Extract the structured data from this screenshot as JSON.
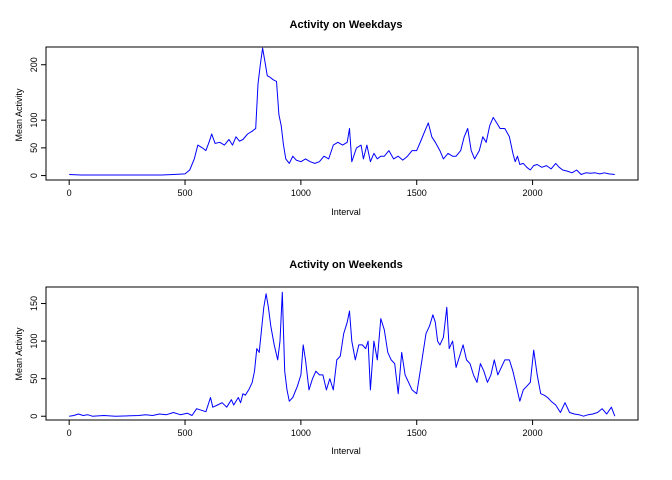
{
  "chart_data": [
    {
      "type": "line",
      "title": "Activity on Weekdays",
      "xlabel": "Interval",
      "ylabel": "Mean Activity",
      "xlim": [
        -100,
        2455
      ],
      "ylim": [
        -8,
        232
      ],
      "xticks": [
        0,
        500,
        1000,
        1500,
        2000
      ],
      "yticks": [
        0,
        50,
        100,
        200
      ],
      "x_tick_labels": [
        "0",
        "500",
        "1000",
        "1500",
        "2000"
      ],
      "y_tick_labels": [
        "0",
        "50",
        "100",
        "200"
      ],
      "grid": false,
      "series": [
        {
          "color": "#0000ff",
          "points": [
            [
              0,
              2
            ],
            [
              50,
              1
            ],
            [
              100,
              1
            ],
            [
              200,
              1
            ],
            [
              300,
              1
            ],
            [
              400,
              1
            ],
            [
              450,
              2
            ],
            [
              500,
              3
            ],
            [
              520,
              10
            ],
            [
              540,
              30
            ],
            [
              555,
              55
            ],
            [
              575,
              50
            ],
            [
              590,
              45
            ],
            [
              605,
              62
            ],
            [
              615,
              75
            ],
            [
              630,
              58
            ],
            [
              650,
              60
            ],
            [
              670,
              55
            ],
            [
              690,
              65
            ],
            [
              705,
              55
            ],
            [
              720,
              70
            ],
            [
              735,
              62
            ],
            [
              750,
              65
            ],
            [
              770,
              75
            ],
            [
              790,
              80
            ],
            [
              805,
              85
            ],
            [
              815,
              165
            ],
            [
              825,
              200
            ],
            [
              835,
              230
            ],
            [
              845,
              205
            ],
            [
              855,
              180
            ],
            [
              865,
              178
            ],
            [
              880,
              173
            ],
            [
              895,
              170
            ],
            [
              905,
              110
            ],
            [
              915,
              90
            ],
            [
              925,
              55
            ],
            [
              935,
              30
            ],
            [
              950,
              22
            ],
            [
              965,
              35
            ],
            [
              980,
              28
            ],
            [
              1000,
              25
            ],
            [
              1020,
              30
            ],
            [
              1040,
              25
            ],
            [
              1060,
              22
            ],
            [
              1080,
              25
            ],
            [
              1100,
              35
            ],
            [
              1120,
              30
            ],
            [
              1140,
              55
            ],
            [
              1160,
              60
            ],
            [
              1180,
              55
            ],
            [
              1200,
              60
            ],
            [
              1210,
              85
            ],
            [
              1220,
              25
            ],
            [
              1240,
              50
            ],
            [
              1260,
              55
            ],
            [
              1270,
              30
            ],
            [
              1285,
              55
            ],
            [
              1300,
              25
            ],
            [
              1315,
              40
            ],
            [
              1330,
              30
            ],
            [
              1345,
              35
            ],
            [
              1360,
              35
            ],
            [
              1380,
              45
            ],
            [
              1400,
              30
            ],
            [
              1420,
              35
            ],
            [
              1440,
              28
            ],
            [
              1460,
              35
            ],
            [
              1480,
              45
            ],
            [
              1500,
              45
            ],
            [
              1520,
              65
            ],
            [
              1535,
              80
            ],
            [
              1550,
              95
            ],
            [
              1565,
              70
            ],
            [
              1580,
              60
            ],
            [
              1600,
              45
            ],
            [
              1615,
              30
            ],
            [
              1635,
              40
            ],
            [
              1655,
              35
            ],
            [
              1670,
              35
            ],
            [
              1690,
              45
            ],
            [
              1705,
              70
            ],
            [
              1720,
              85
            ],
            [
              1735,
              45
            ],
            [
              1750,
              30
            ],
            [
              1770,
              45
            ],
            [
              1785,
              70
            ],
            [
              1800,
              60
            ],
            [
              1815,
              90
            ],
            [
              1830,
              105
            ],
            [
              1845,
              95
            ],
            [
              1860,
              85
            ],
            [
              1880,
              85
            ],
            [
              1900,
              70
            ],
            [
              1915,
              40
            ],
            [
              1925,
              25
            ],
            [
              1935,
              35
            ],
            [
              1945,
              20
            ],
            [
              1960,
              22
            ],
            [
              1975,
              15
            ],
            [
              1990,
              10
            ],
            [
              2005,
              18
            ],
            [
              2020,
              20
            ],
            [
              2040,
              15
            ],
            [
              2060,
              18
            ],
            [
              2080,
              12
            ],
            [
              2100,
              22
            ],
            [
              2115,
              15
            ],
            [
              2130,
              10
            ],
            [
              2150,
              8
            ],
            [
              2170,
              5
            ],
            [
              2190,
              10
            ],
            [
              2210,
              2
            ],
            [
              2230,
              5
            ],
            [
              2250,
              4
            ],
            [
              2270,
              5
            ],
            [
              2290,
              3
            ],
            [
              2310,
              5
            ],
            [
              2330,
              3
            ],
            [
              2355,
              2
            ]
          ]
        }
      ]
    },
    {
      "type": "line",
      "title": "Activity on Weekends",
      "xlabel": "Interval",
      "ylabel": "Mean Activity",
      "xlim": [
        -100,
        2455
      ],
      "ylim": [
        -5,
        172
      ],
      "xticks": [
        0,
        500,
        1000,
        1500,
        2000
      ],
      "yticks": [
        0,
        50,
        100,
        150
      ],
      "x_tick_labels": [
        "0",
        "500",
        "1000",
        "1500",
        "2000"
      ],
      "y_tick_labels": [
        "0",
        "50",
        "100",
        "150"
      ],
      "grid": false,
      "series": [
        {
          "color": "#0000ff",
          "points": [
            [
              0,
              0
            ],
            [
              20,
              1
            ],
            [
              40,
              3
            ],
            [
              60,
              1
            ],
            [
              80,
              2
            ],
            [
              100,
              0
            ],
            [
              150,
              1
            ],
            [
              200,
              0
            ],
            [
              300,
              1
            ],
            [
              330,
              2
            ],
            [
              360,
              1
            ],
            [
              390,
              3
            ],
            [
              420,
              2
            ],
            [
              450,
              5
            ],
            [
              480,
              2
            ],
            [
              510,
              4
            ],
            [
              530,
              1
            ],
            [
              550,
              10
            ],
            [
              570,
              8
            ],
            [
              590,
              6
            ],
            [
              610,
              25
            ],
            [
              620,
              12
            ],
            [
              640,
              15
            ],
            [
              660,
              18
            ],
            [
              680,
              12
            ],
            [
              700,
              22
            ],
            [
              710,
              15
            ],
            [
              720,
              20
            ],
            [
              730,
              25
            ],
            [
              740,
              18
            ],
            [
              750,
              30
            ],
            [
              760,
              28
            ],
            [
              775,
              35
            ],
            [
              790,
              45
            ],
            [
              800,
              60
            ],
            [
              810,
              90
            ],
            [
              820,
              85
            ],
            [
              830,
              115
            ],
            [
              840,
              145
            ],
            [
              850,
              163
            ],
            [
              860,
              145
            ],
            [
              870,
              120
            ],
            [
              885,
              95
            ],
            [
              900,
              75
            ],
            [
              910,
              100
            ],
            [
              920,
              165
            ],
            [
              930,
              60
            ],
            [
              940,
              35
            ],
            [
              950,
              20
            ],
            [
              965,
              25
            ],
            [
              985,
              40
            ],
            [
              1000,
              55
            ],
            [
              1010,
              95
            ],
            [
              1020,
              75
            ],
            [
              1035,
              35
            ],
            [
              1050,
              50
            ],
            [
              1065,
              60
            ],
            [
              1080,
              55
            ],
            [
              1095,
              55
            ],
            [
              1110,
              35
            ],
            [
              1125,
              50
            ],
            [
              1140,
              35
            ],
            [
              1155,
              75
            ],
            [
              1170,
              80
            ],
            [
              1185,
              110
            ],
            [
              1200,
              125
            ],
            [
              1210,
              140
            ],
            [
              1220,
              100
            ],
            [
              1235,
              75
            ],
            [
              1250,
              95
            ],
            [
              1265,
              95
            ],
            [
              1280,
              90
            ],
            [
              1290,
              100
            ],
            [
              1300,
              35
            ],
            [
              1315,
              100
            ],
            [
              1330,
              75
            ],
            [
              1345,
              130
            ],
            [
              1360,
              115
            ],
            [
              1375,
              85
            ],
            [
              1390,
              75
            ],
            [
              1405,
              70
            ],
            [
              1420,
              30
            ],
            [
              1435,
              85
            ],
            [
              1450,
              55
            ],
            [
              1465,
              45
            ],
            [
              1480,
              35
            ],
            [
              1500,
              30
            ],
            [
              1520,
              70
            ],
            [
              1540,
              110
            ],
            [
              1555,
              120
            ],
            [
              1570,
              135
            ],
            [
              1580,
              125
            ],
            [
              1590,
              100
            ],
            [
              1600,
              95
            ],
            [
              1615,
              105
            ],
            [
              1630,
              145
            ],
            [
              1640,
              90
            ],
            [
              1655,
              100
            ],
            [
              1670,
              65
            ],
            [
              1685,
              80
            ],
            [
              1700,
              95
            ],
            [
              1715,
              75
            ],
            [
              1730,
              70
            ],
            [
              1745,
              55
            ],
            [
              1760,
              45
            ],
            [
              1775,
              70
            ],
            [
              1790,
              60
            ],
            [
              1805,
              45
            ],
            [
              1820,
              55
            ],
            [
              1835,
              75
            ],
            [
              1850,
              55
            ],
            [
              1865,
              65
            ],
            [
              1880,
              75
            ],
            [
              1900,
              75
            ],
            [
              1915,
              60
            ],
            [
              1930,
              40
            ],
            [
              1945,
              20
            ],
            [
              1960,
              35
            ],
            [
              1975,
              40
            ],
            [
              1990,
              45
            ],
            [
              2005,
              88
            ],
            [
              2020,
              55
            ],
            [
              2035,
              30
            ],
            [
              2050,
              28
            ],
            [
              2065,
              25
            ],
            [
              2080,
              20
            ],
            [
              2100,
              15
            ],
            [
              2120,
              5
            ],
            [
              2140,
              18
            ],
            [
              2160,
              5
            ],
            [
              2180,
              3
            ],
            [
              2200,
              2
            ],
            [
              2220,
              0
            ],
            [
              2240,
              2
            ],
            [
              2260,
              3
            ],
            [
              2280,
              5
            ],
            [
              2300,
              10
            ],
            [
              2320,
              3
            ],
            [
              2340,
              12
            ],
            [
              2355,
              0
            ]
          ]
        }
      ]
    }
  ]
}
